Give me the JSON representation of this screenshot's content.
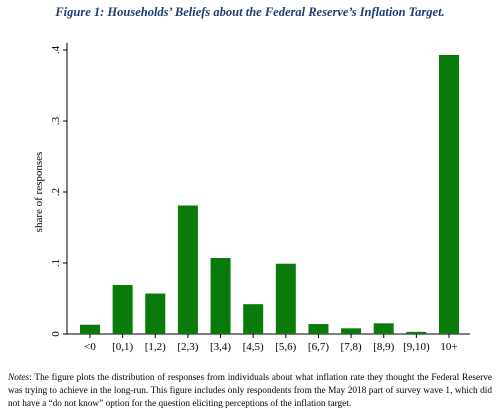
{
  "figure": {
    "title": "Figure 1: Households’ Beliefs about the Federal Reserve’s Inflation Target."
  },
  "chart_data": {
    "type": "bar",
    "categories": [
      "<0",
      "[0,1)",
      "[1,2)",
      "[2,3)",
      "[3,4)",
      "[4,5)",
      "[5,6)",
      "[6,7)",
      "[7,8)",
      "[8,9)",
      "[9,10)",
      "10+"
    ],
    "values": [
      0.013,
      0.069,
      0.057,
      0.181,
      0.107,
      0.042,
      0.099,
      0.014,
      0.008,
      0.015,
      0.003,
      0.393
    ],
    "ylabel": "share of responses",
    "xlabel": "",
    "ylim": [
      0,
      0.42
    ],
    "yticks": [
      0,
      0.1,
      0.2,
      0.3,
      0.4
    ],
    "ytick_labels": [
      "0",
      ".1",
      ".2",
      ".3",
      ".4"
    ],
    "bar_color": "#0a7a0a",
    "grid": false,
    "legend": "none"
  },
  "notes": {
    "label": "Notes",
    "text": ": The figure plots the distribution of responses from individuals about what inflation rate they thought the Federal Reserve was trying to achieve in the long-run. This figure includes only respondents from the May 2018 part of survey wave 1, which did not have a “do not know” option for the question eliciting perceptions of the inflation target."
  }
}
